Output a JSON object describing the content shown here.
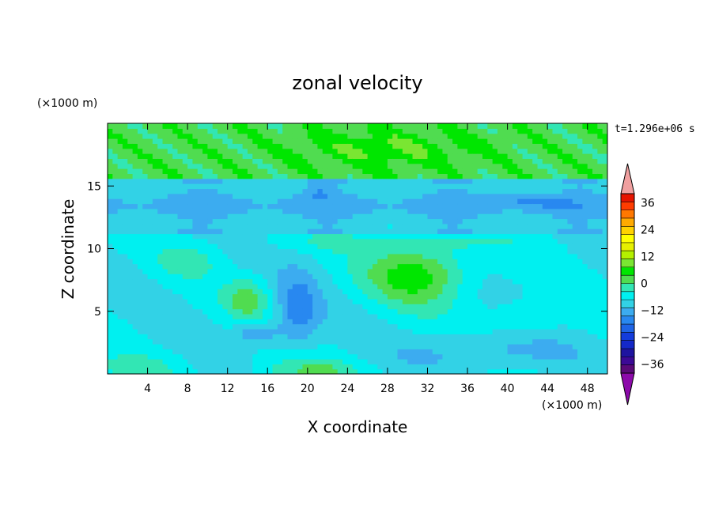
{
  "chart_data": {
    "type": "heatmap",
    "title": "zonal velocity",
    "xlabel": "X coordinate",
    "ylabel": "Z coordinate",
    "x_unit": "(×1000 m)",
    "y_unit": "(×1000 m)",
    "time_label": "t=1.296e+06 s",
    "xlim": [
      0,
      50
    ],
    "ylim": [
      0,
      20
    ],
    "x_ticks": [
      4,
      8,
      12,
      16,
      20,
      24,
      28,
      32,
      36,
      40,
      44,
      48
    ],
    "y_ticks": [
      5,
      10,
      15
    ],
    "colorbar": {
      "min": -40,
      "max": 40,
      "step": 4,
      "tick_labels": [
        "36",
        "24",
        "12",
        "0",
        "−12",
        "−24",
        "−36"
      ],
      "tick_values": [
        36,
        24,
        12,
        0,
        -12,
        -24,
        -36
      ],
      "colors": [
        "#5a0a78",
        "#3c0a96",
        "#1e14a0",
        "#1428c8",
        "#143cdc",
        "#1e64e6",
        "#2888f0",
        "#3cacf0",
        "#32d2e6",
        "#00f0f0",
        "#32e6b4",
        "#50dc50",
        "#00e600",
        "#7ae632",
        "#b4f000",
        "#e6f000",
        "#ffff00",
        "#ffd200",
        "#ffaa00",
        "#ff7800",
        "#ff3c00",
        "#e61400"
      ],
      "under_color": "#8c0aaa",
      "over_color": "#f0a0a0"
    }
  }
}
